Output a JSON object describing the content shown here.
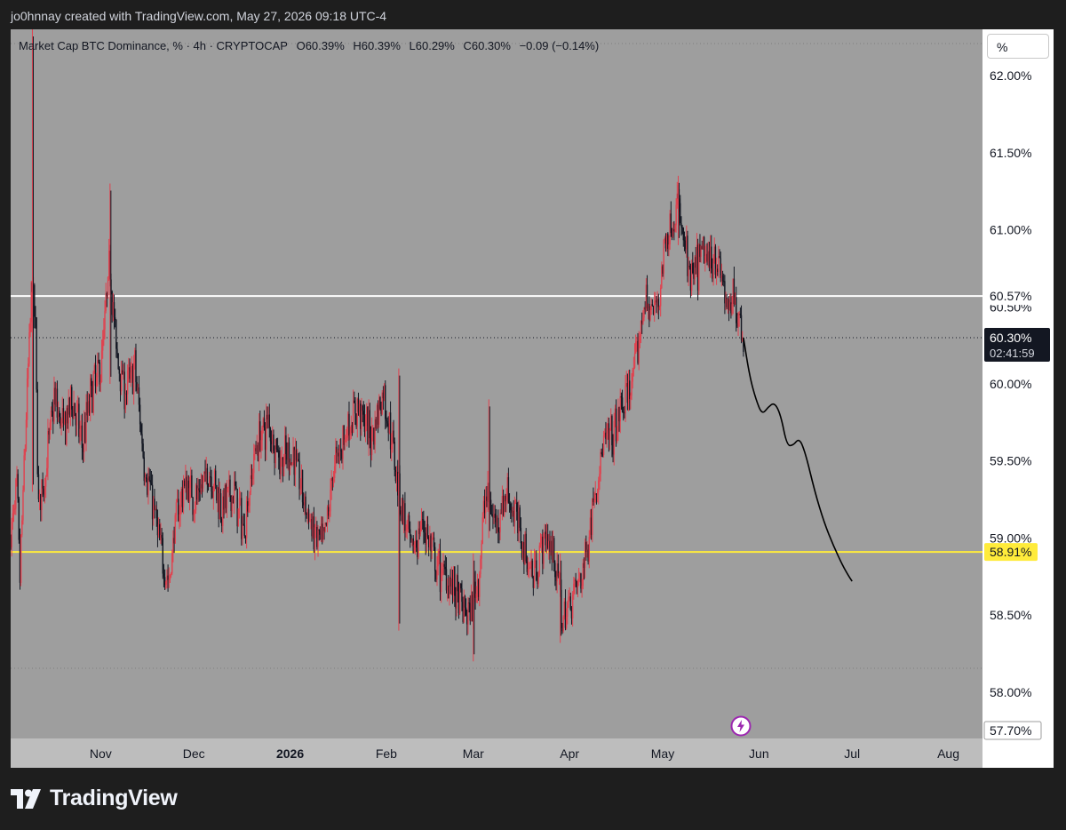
{
  "caption": "jo0hnnay created with TradingView.com, May 27, 2026 09:18 UTC-4",
  "legend": {
    "title": "Market Cap BTC Dominance, % · 4h · CRYPTOCAP",
    "open": "O60.39%",
    "high": "H60.39%",
    "low": "L60.29%",
    "close": "C60.30%",
    "change": "−0.09 (−0.14%)"
  },
  "unit_button": "%",
  "brand": "TradingView",
  "colors": {
    "candle_down": "#131722",
    "candle_up": "#e0424f",
    "resistance": "#ffffff",
    "support": "#ffeb3b",
    "projection": "#000000",
    "last_price_bg": "#131722"
  },
  "chart_data": {
    "type": "candlestick",
    "symbol": "Market Cap BTC Dominance",
    "interval": "4h",
    "exchange": "CRYPTOCAP",
    "y_unit": "%",
    "ylim": [
      57.7,
      62.3
    ],
    "y_ticks": [
      "62.00%",
      "61.50%",
      "61.00%",
      "60.50%",
      "60.00%",
      "59.50%",
      "59.00%",
      "58.50%",
      "58.00%"
    ],
    "y_tick_values": [
      62.0,
      61.5,
      61.0,
      60.5,
      60.0,
      59.5,
      59.0,
      58.5,
      58.0
    ],
    "x_ticks": [
      {
        "label": "Nov",
        "date": "2025-11-01"
      },
      {
        "label": "Dec",
        "date": "2025-12-01"
      },
      {
        "label": "2026",
        "date": "2026-01-01",
        "bold": true
      },
      {
        "label": "Feb",
        "date": "2026-02-01"
      },
      {
        "label": "Mar",
        "date": "2026-03-01"
      },
      {
        "label": "Apr",
        "date": "2026-04-01"
      },
      {
        "label": "May",
        "date": "2026-05-01"
      },
      {
        "label": "Jun",
        "date": "2026-06-01"
      },
      {
        "label": "Jul",
        "date": "2026-07-01"
      },
      {
        "label": "Aug",
        "date": "2026-08-01"
      }
    ],
    "xlim": [
      "2025-10-03",
      "2026-08-12"
    ],
    "price_path": [
      [
        "2025-10-03",
        59.0
      ],
      [
        "2025-10-05",
        59.3
      ],
      [
        "2025-10-06",
        58.75
      ],
      [
        "2025-10-08",
        59.8
      ],
      [
        "2025-10-10",
        60.7
      ],
      [
        "2025-10-11",
        60.3
      ],
      [
        "2025-10-12",
        59.2
      ],
      [
        "2025-10-14",
        59.4
      ],
      [
        "2025-10-17",
        59.9
      ],
      [
        "2025-10-20",
        59.7
      ],
      [
        "2025-10-23",
        59.9
      ],
      [
        "2025-10-26",
        59.6
      ],
      [
        "2025-10-29",
        59.95
      ],
      [
        "2025-11-01",
        60.1
      ],
      [
        "2025-11-04",
        60.8
      ],
      [
        "2025-11-06",
        60.2
      ],
      [
        "2025-11-09",
        59.95
      ],
      [
        "2025-11-12",
        60.1
      ],
      [
        "2025-11-15",
        59.5
      ],
      [
        "2025-11-18",
        59.2
      ],
      [
        "2025-11-20",
        58.95
      ],
      [
        "2025-11-23",
        58.7
      ],
      [
        "2025-11-25",
        59.1
      ],
      [
        "2025-11-28",
        59.35
      ],
      [
        "2025-12-02",
        59.25
      ],
      [
        "2025-12-06",
        59.45
      ],
      [
        "2025-12-10",
        59.2
      ],
      [
        "2025-12-14",
        59.3
      ],
      [
        "2025-12-17",
        59.05
      ],
      [
        "2025-12-21",
        59.6
      ],
      [
        "2025-12-25",
        59.75
      ],
      [
        "2025-12-29",
        59.5
      ],
      [
        "2026-01-02",
        59.55
      ],
      [
        "2026-01-06",
        59.2
      ],
      [
        "2026-01-09",
        59.0
      ],
      [
        "2026-01-12",
        58.95
      ],
      [
        "2026-01-15",
        59.45
      ],
      [
        "2026-01-19",
        59.7
      ],
      [
        "2026-01-23",
        59.85
      ],
      [
        "2026-01-27",
        59.65
      ],
      [
        "2026-01-31",
        59.95
      ],
      [
        "2026-02-03",
        59.6
      ],
      [
        "2026-02-06",
        59.2
      ],
      [
        "2026-02-09",
        58.9
      ],
      [
        "2026-02-13",
        59.1
      ],
      [
        "2026-02-17",
        58.8
      ],
      [
        "2026-02-21",
        58.75
      ],
      [
        "2026-02-25",
        58.55
      ],
      [
        "2026-02-28",
        58.5
      ],
      [
        "2026-03-03",
        58.8
      ],
      [
        "2026-03-05",
        59.3
      ],
      [
        "2026-03-08",
        59.1
      ],
      [
        "2026-03-12",
        59.3
      ],
      [
        "2026-03-16",
        59.05
      ],
      [
        "2026-03-20",
        58.75
      ],
      [
        "2026-03-24",
        59.0
      ],
      [
        "2026-03-27",
        58.9
      ],
      [
        "2026-03-30",
        58.45
      ],
      [
        "2026-04-02",
        58.65
      ],
      [
        "2026-04-05",
        58.75
      ],
      [
        "2026-04-07",
        59.0
      ],
      [
        "2026-04-09",
        59.3
      ],
      [
        "2026-04-12",
        59.6
      ],
      [
        "2026-04-15",
        59.65
      ],
      [
        "2026-04-18",
        59.85
      ],
      [
        "2026-04-21",
        60.0
      ],
      [
        "2026-04-23",
        60.2
      ],
      [
        "2026-04-25",
        60.55
      ],
      [
        "2026-04-28",
        60.45
      ],
      [
        "2026-04-30",
        60.6
      ],
      [
        "2026-05-02",
        60.95
      ],
      [
        "2026-05-04",
        61.05
      ],
      [
        "2026-05-06",
        61.15
      ],
      [
        "2026-05-08",
        60.9
      ],
      [
        "2026-05-10",
        60.65
      ],
      [
        "2026-05-12",
        60.75
      ],
      [
        "2026-05-14",
        60.85
      ],
      [
        "2026-05-16",
        60.8
      ],
      [
        "2026-05-18",
        60.85
      ],
      [
        "2026-05-20",
        60.7
      ],
      [
        "2026-05-22",
        60.45
      ],
      [
        "2026-05-24",
        60.55
      ],
      [
        "2026-05-26",
        60.42
      ],
      [
        "2026-05-27",
        60.3
      ]
    ],
    "spikes": [
      {
        "date": "2025-10-10",
        "high": 62.3,
        "low": 59.3
      },
      {
        "date": "2025-11-04",
        "high": 61.3,
        "low": 60.0
      },
      {
        "date": "2026-02-05",
        "high": 60.1,
        "low": 58.4
      },
      {
        "date": "2026-03-01",
        "high": 58.9,
        "low": 58.2
      },
      {
        "date": "2026-03-06",
        "high": 59.9,
        "low": 59.0
      },
      {
        "date": "2026-05-06",
        "high": 61.35,
        "low": 60.9
      },
      {
        "date": "2026-03-29",
        "high": 58.9,
        "low": 58.32
      }
    ],
    "projection": [
      [
        "2026-05-27",
        60.3
      ],
      [
        "2026-05-29",
        60.05
      ],
      [
        "2026-05-31",
        59.9
      ],
      [
        "2026-06-02",
        59.8
      ],
      [
        "2026-06-04",
        59.85
      ],
      [
        "2026-06-06",
        59.88
      ],
      [
        "2026-06-08",
        59.8
      ],
      [
        "2026-06-10",
        59.6
      ],
      [
        "2026-06-12",
        59.6
      ],
      [
        "2026-06-14",
        59.65
      ],
      [
        "2026-06-16",
        59.55
      ],
      [
        "2026-06-19",
        59.3
      ],
      [
        "2026-06-22",
        59.1
      ],
      [
        "2026-06-25",
        58.95
      ],
      [
        "2026-06-28",
        58.82
      ],
      [
        "2026-06-30",
        58.75
      ],
      [
        "2026-07-01",
        58.72
      ]
    ],
    "horizontal_lines": [
      {
        "name": "resistance",
        "value": 60.57,
        "label": "60.57%",
        "color": "#ffffff"
      },
      {
        "name": "support",
        "value": 58.91,
        "label": "58.91%",
        "color": "#ffeb3b"
      }
    ],
    "last_price": {
      "value": 60.3,
      "label": "60.30%",
      "countdown": "02:41:59"
    },
    "bottom_label": "57.70%",
    "grid": false
  }
}
